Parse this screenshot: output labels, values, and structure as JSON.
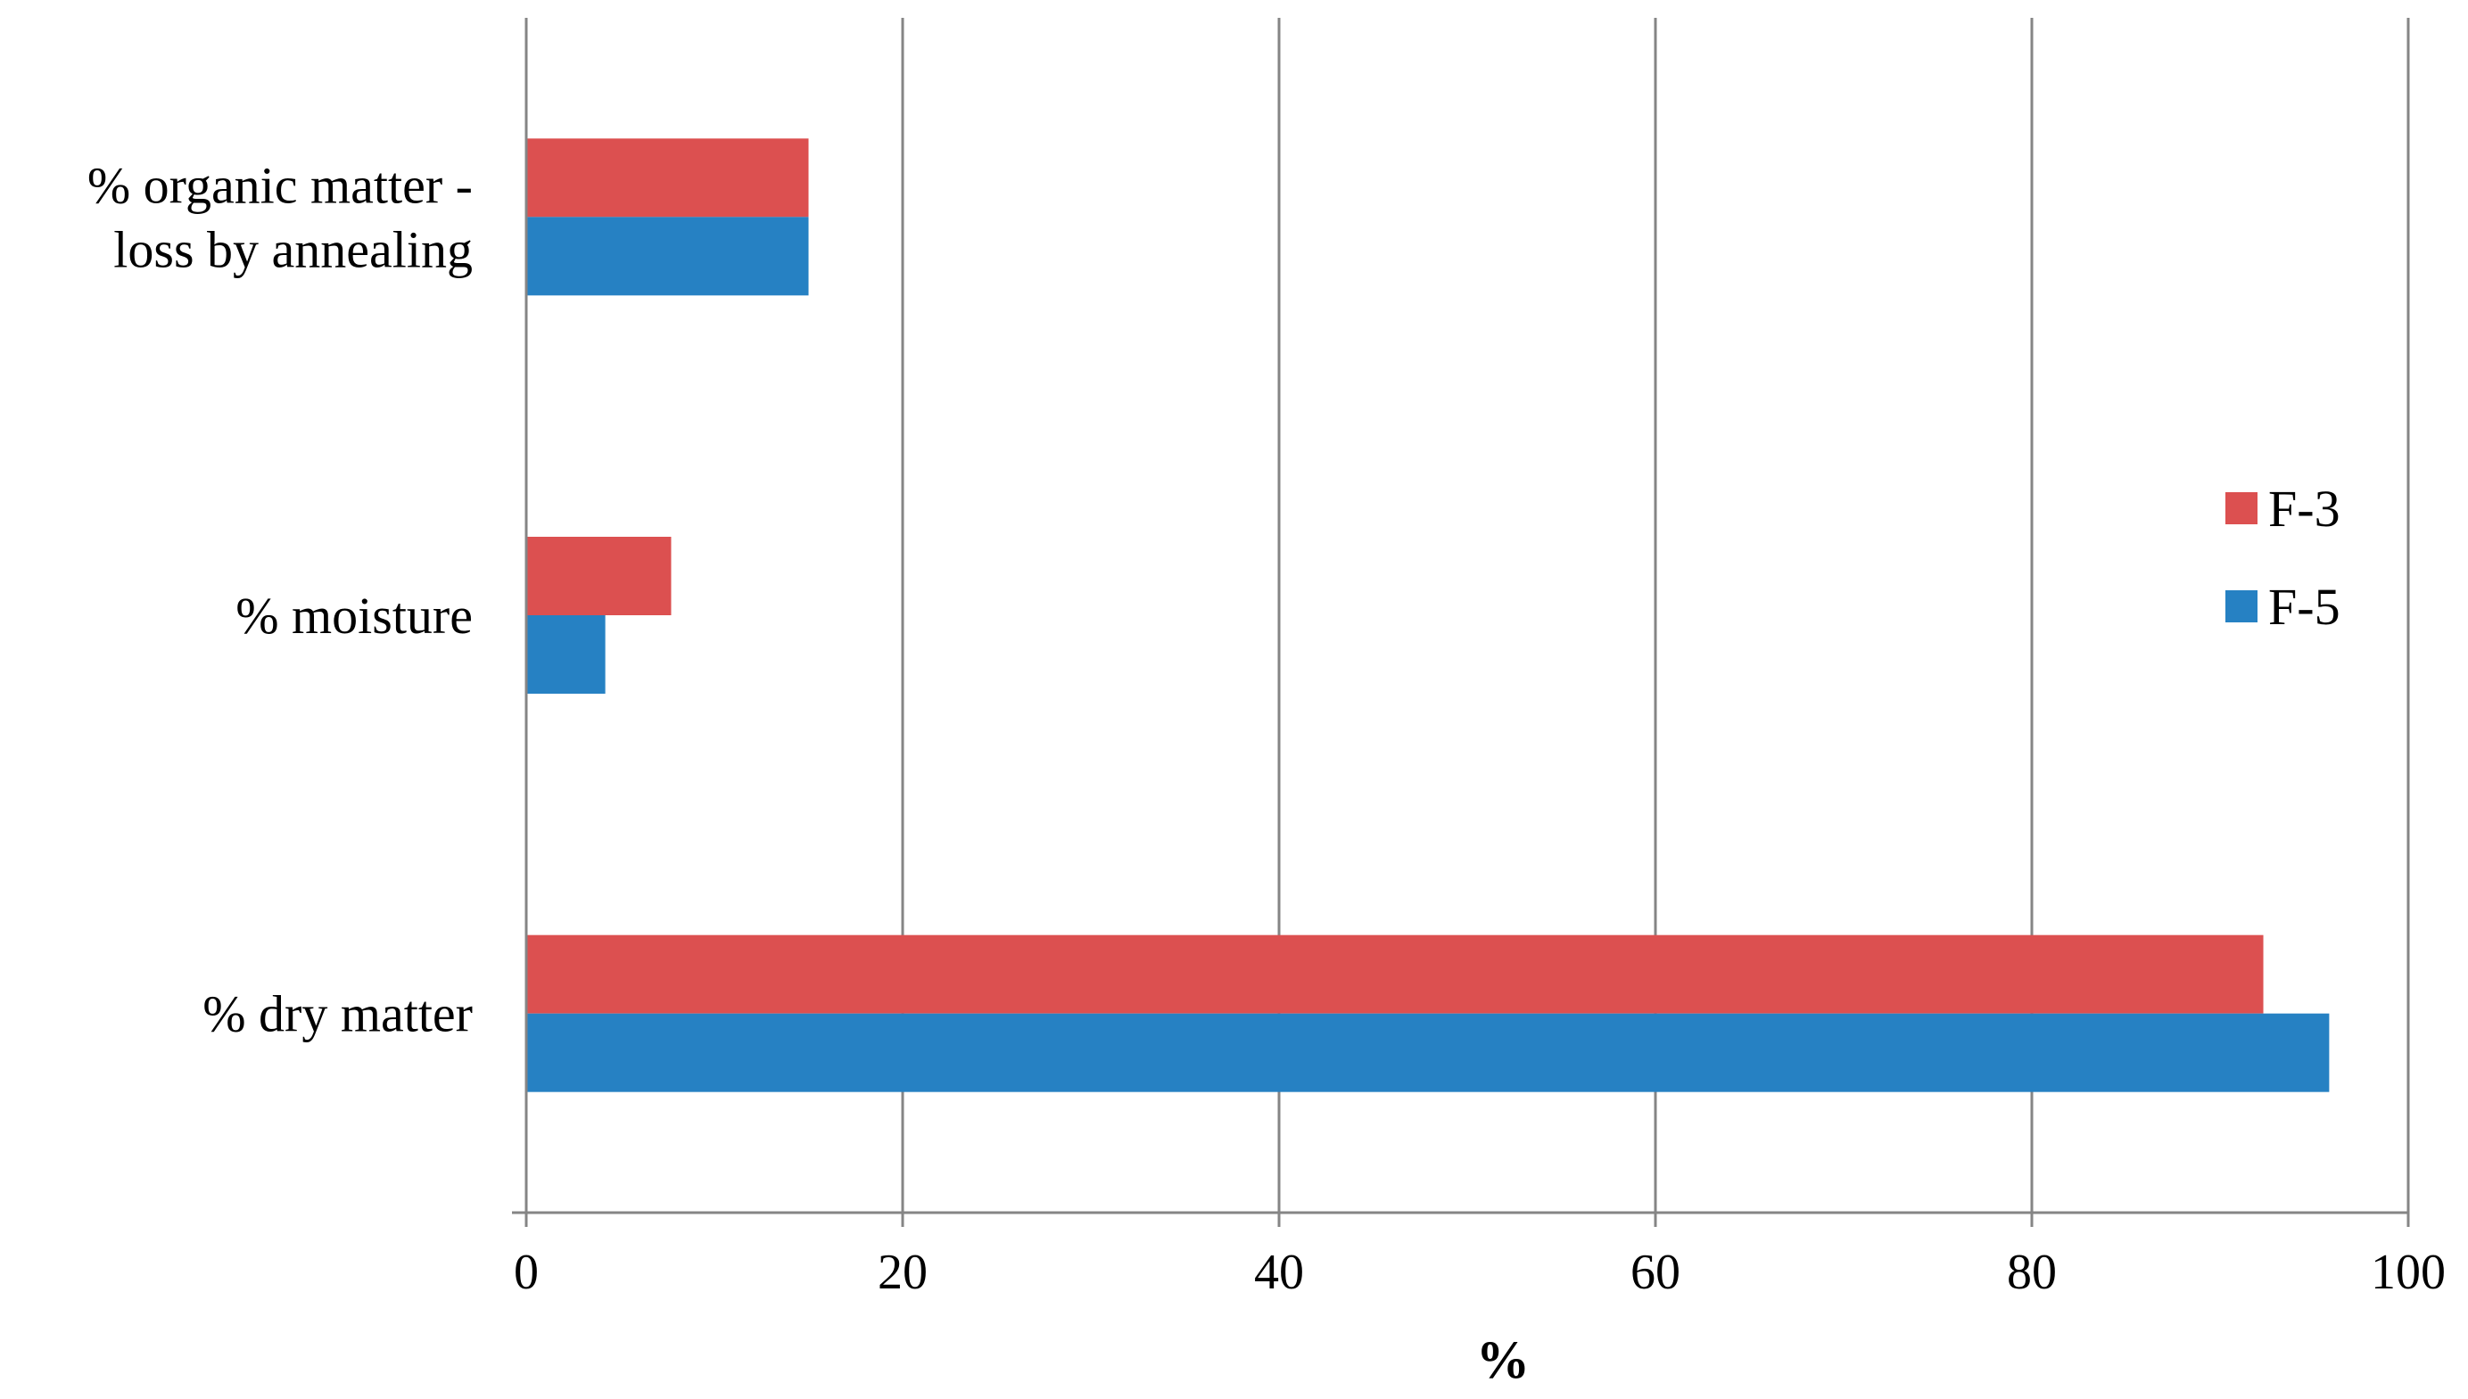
{
  "chart_data": {
    "type": "bar",
    "orientation": "horizontal",
    "categories": [
      "% organic matter - loss by annealing",
      "% moisture",
      "% dry matter"
    ],
    "category_label_lines": [
      [
        "% organic matter -",
        "loss by annealing"
      ],
      [
        "% moisture"
      ],
      [
        "% dry matter"
      ]
    ],
    "series": [
      {
        "name": "F-3",
        "color": "#dc5050",
        "values": [
          15,
          7.7,
          92.3
        ]
      },
      {
        "name": "F-5",
        "color": "#2681c3",
        "values": [
          15,
          4.2,
          95.8
        ]
      }
    ],
    "xlim": [
      0,
      100
    ],
    "xticks": [
      0,
      20,
      40,
      60,
      80,
      100
    ],
    "xlabel": "%",
    "ylabel": "",
    "title": "",
    "grid": "vertical",
    "legend": "right"
  }
}
